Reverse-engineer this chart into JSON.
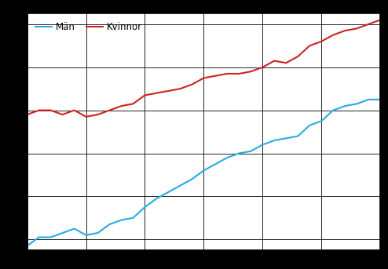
{
  "legend_man": "Män",
  "legend_kvinnor": "Kvinnor",
  "color_man": "#29ABE2",
  "color_kvinnor": "#CC2222",
  "x_start": 1980,
  "x_end": 2010,
  "ylim": [
    72.5,
    83.5
  ],
  "xticks": [
    1980,
    1985,
    1990,
    1995,
    2000,
    2005,
    2010
  ],
  "yticks": [
    73,
    75,
    77,
    79,
    81,
    83
  ],
  "grid_color": "#000000",
  "background_color": "#FFFFFF",
  "outer_color": "#000000",
  "man_data": [
    [
      1980,
      72.7
    ],
    [
      1981,
      73.1
    ],
    [
      1982,
      73.1
    ],
    [
      1983,
      73.3
    ],
    [
      1984,
      73.5
    ],
    [
      1985,
      73.2
    ],
    [
      1986,
      73.3
    ],
    [
      1987,
      73.7
    ],
    [
      1988,
      73.9
    ],
    [
      1989,
      74.0
    ],
    [
      1990,
      74.5
    ],
    [
      1991,
      74.9
    ],
    [
      1992,
      75.2
    ],
    [
      1993,
      75.5
    ],
    [
      1994,
      75.8
    ],
    [
      1995,
      76.2
    ],
    [
      1996,
      76.5
    ],
    [
      1997,
      76.8
    ],
    [
      1998,
      77.0
    ],
    [
      1999,
      77.1
    ],
    [
      2000,
      77.4
    ],
    [
      2001,
      77.6
    ],
    [
      2002,
      77.7
    ],
    [
      2003,
      77.8
    ],
    [
      2004,
      78.3
    ],
    [
      2005,
      78.5
    ],
    [
      2006,
      79.0
    ],
    [
      2007,
      79.2
    ],
    [
      2008,
      79.3
    ],
    [
      2009,
      79.5
    ],
    [
      2010,
      79.5
    ]
  ],
  "kvinnor_data": [
    [
      1980,
      78.8
    ],
    [
      1981,
      79.0
    ],
    [
      1982,
      79.0
    ],
    [
      1983,
      78.8
    ],
    [
      1984,
      79.0
    ],
    [
      1985,
      78.7
    ],
    [
      1986,
      78.8
    ],
    [
      1987,
      79.0
    ],
    [
      1988,
      79.2
    ],
    [
      1989,
      79.3
    ],
    [
      1990,
      79.7
    ],
    [
      1991,
      79.8
    ],
    [
      1992,
      79.9
    ],
    [
      1993,
      80.0
    ],
    [
      1994,
      80.2
    ],
    [
      1995,
      80.5
    ],
    [
      1996,
      80.6
    ],
    [
      1997,
      80.7
    ],
    [
      1998,
      80.7
    ],
    [
      1999,
      80.8
    ],
    [
      2000,
      81.0
    ],
    [
      2001,
      81.3
    ],
    [
      2002,
      81.2
    ],
    [
      2003,
      81.5
    ],
    [
      2004,
      82.0
    ],
    [
      2005,
      82.2
    ],
    [
      2006,
      82.5
    ],
    [
      2007,
      82.7
    ],
    [
      2008,
      82.8
    ],
    [
      2009,
      83.0
    ],
    [
      2010,
      83.2
    ]
  ]
}
